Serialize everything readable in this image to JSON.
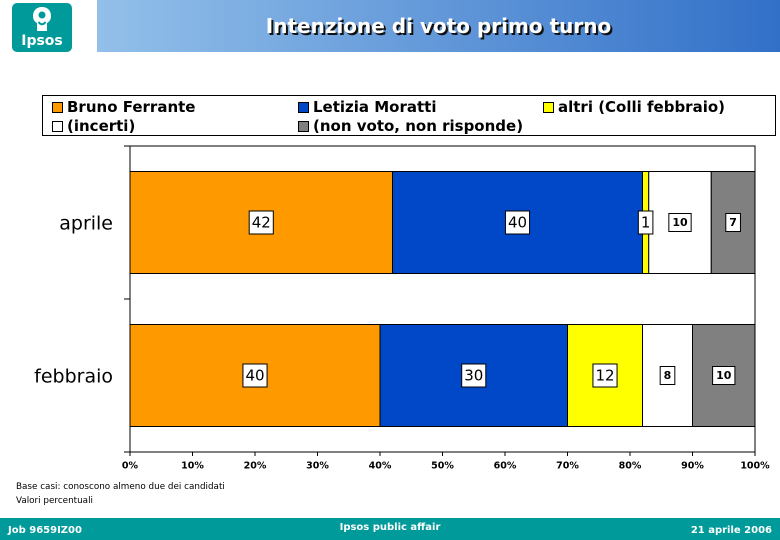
{
  "header": {
    "logo_text": "Ipsos",
    "title": "Intenzione di voto primo turno"
  },
  "theme": {
    "brand_teal": "#009a9a",
    "header_band_left": "#93c0ea",
    "header_band_right": "#3270c8"
  },
  "chart_data": {
    "type": "bar",
    "orientation": "horizontal",
    "stacked": true,
    "categories": [
      "aprile",
      "febbraio"
    ],
    "series": [
      {
        "name": "Bruno Ferrante",
        "color": "#FF9900",
        "values": [
          42,
          40
        ]
      },
      {
        "name": "Letizia Moratti",
        "color": "#0048C8",
        "values": [
          40,
          30
        ]
      },
      {
        "name": "altri (Colli febbraio)",
        "color": "#FFFF00",
        "values": [
          1,
          12
        ]
      },
      {
        "name": "(incerti)",
        "color": "#FFFFFF",
        "values": [
          10,
          8
        ]
      },
      {
        "name": "(non voto, non risponde)",
        "color": "#808080",
        "values": [
          7,
          10
        ]
      }
    ],
    "xlim": [
      0,
      100
    ],
    "x_ticks": [
      0,
      10,
      20,
      30,
      40,
      50,
      60,
      70,
      80,
      90,
      100
    ],
    "x_tick_labels": [
      "0%",
      "10%",
      "20%",
      "30%",
      "40%",
      "50%",
      "60%",
      "70%",
      "80%",
      "90%",
      "100%"
    ],
    "legend_position": "top",
    "grid": false
  },
  "notes": [
    "Base casi: conoscono almeno due dei candidati",
    "Valori percentuali"
  ],
  "footer": {
    "job": "Job 9659IZ00",
    "center": "Ipsos public affair",
    "date": "21 aprile 2006"
  }
}
